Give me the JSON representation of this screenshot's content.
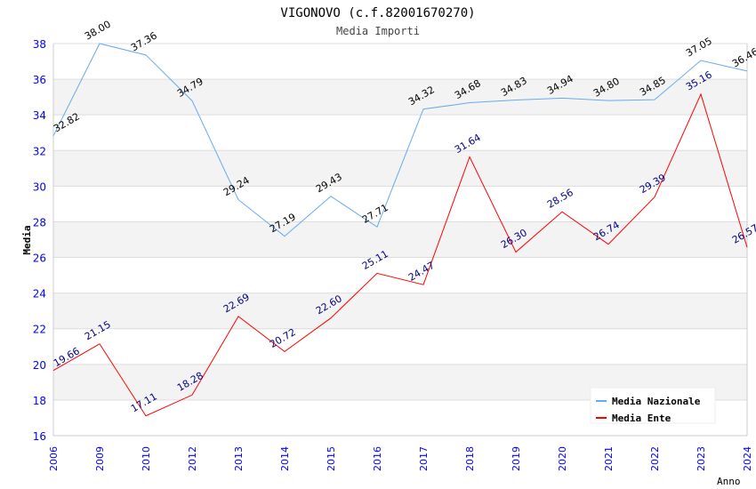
{
  "chart_data": {
    "type": "line",
    "title": "VIGONOVO (c.f.82001670270)",
    "subtitle": "Media Importi",
    "xlabel": "Anno",
    "ylabel": "Media",
    "ylim": [
      16,
      38
    ],
    "yticks": [
      "16",
      "18",
      "20",
      "22",
      "24",
      "26",
      "28",
      "30",
      "32",
      "34",
      "36",
      "38"
    ],
    "categories": [
      "2006",
      "2009",
      "2010",
      "2012",
      "2013",
      "2014",
      "2015",
      "2016",
      "2017",
      "2018",
      "2019",
      "2020",
      "2021",
      "2022",
      "2023",
      "2024"
    ],
    "legend_position": "top-right",
    "series": [
      {
        "name": "Media Nazionale",
        "color": "#66aaee",
        "label_color": "#000000",
        "values": [
          32.82,
          38.0,
          37.36,
          34.79,
          29.24,
          27.19,
          29.43,
          27.71,
          34.32,
          34.68,
          34.83,
          34.94,
          34.8,
          34.85,
          37.05,
          36.46
        ]
      },
      {
        "name": "Media Ente",
        "color": "#ff0000",
        "label_color": "#000080",
        "values": [
          19.66,
          21.15,
          17.11,
          18.28,
          22.69,
          20.72,
          22.6,
          25.11,
          24.47,
          31.64,
          26.3,
          28.56,
          26.74,
          29.39,
          35.16,
          26.57
        ]
      }
    ]
  }
}
